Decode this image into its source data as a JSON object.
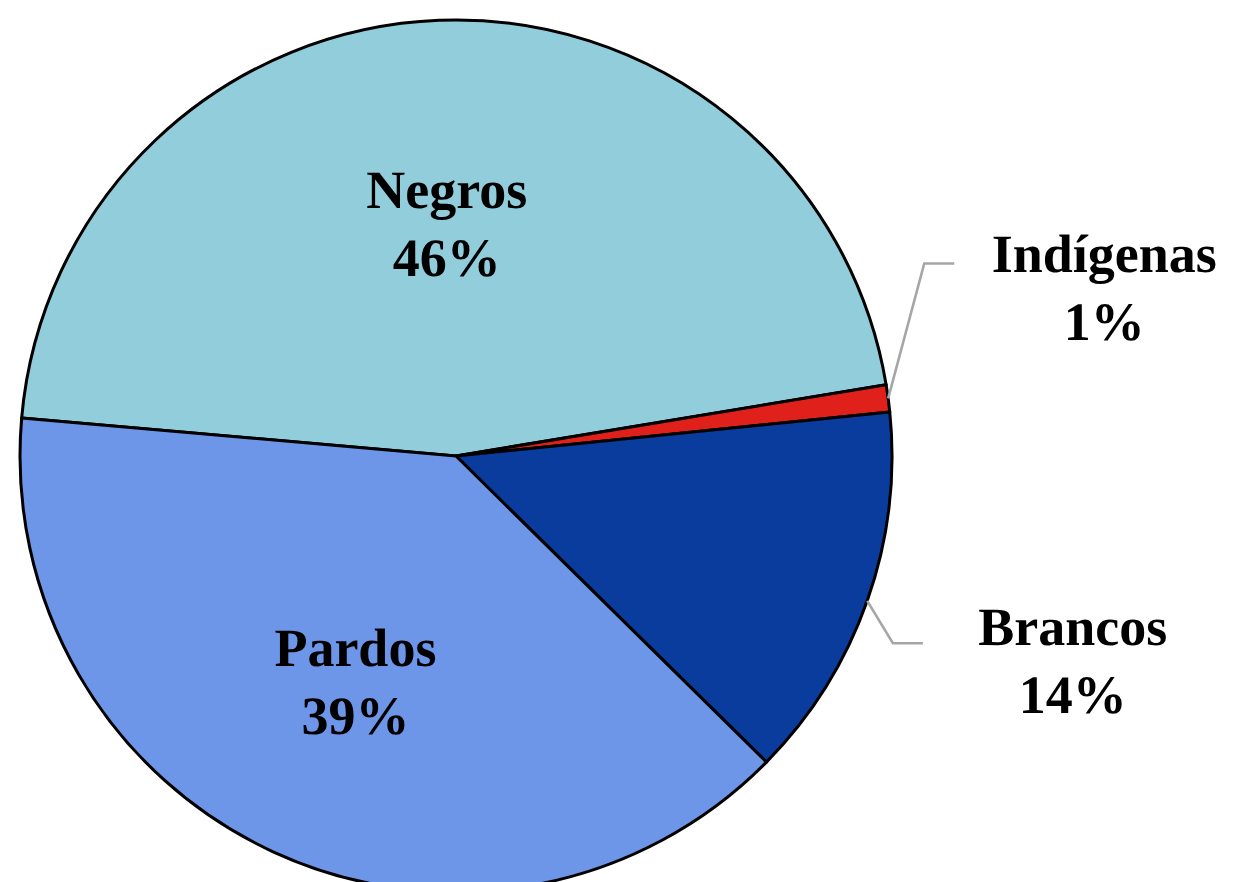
{
  "chart_data": {
    "type": "pie",
    "categories": [
      "Negros",
      "Indígenas",
      "Brancos",
      "Pardos"
    ],
    "values": [
      46,
      1,
      14,
      39
    ],
    "colors": [
      "#92cddc",
      "#e0201b",
      "#0a3c9e",
      "#6d96e8"
    ],
    "value_labels": [
      "46%",
      "1%",
      "14%",
      "39%"
    ]
  }
}
